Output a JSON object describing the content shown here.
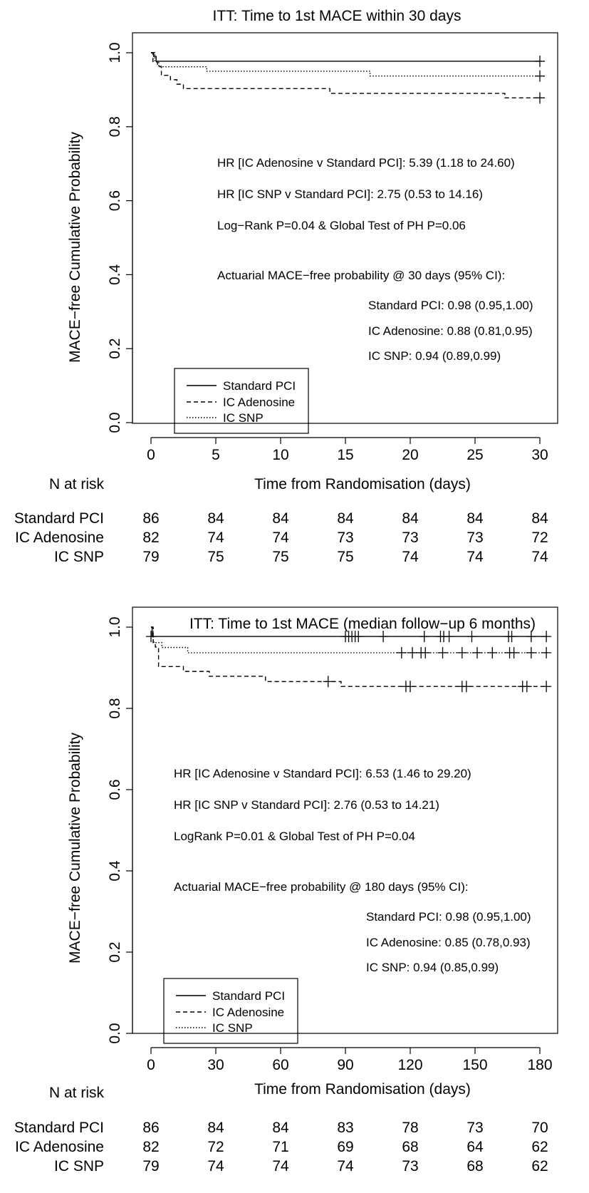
{
  "chart_data": [
    {
      "type": "line",
      "subtype": "kaplan-meier",
      "title": "ITT: Time to 1st MACE within 30 days",
      "xlabel": "Time from Randomisation (days)",
      "ylabel": "MACE−free Cumulative Probability",
      "xlim": [
        0,
        30
      ],
      "ylim": [
        0,
        1
      ],
      "x_ticks": [
        "0",
        "5",
        "10",
        "15",
        "20",
        "25",
        "30"
      ],
      "y_ticks": [
        "0.0",
        "0.2",
        "0.4",
        "0.6",
        "0.8",
        "1.0"
      ],
      "grid": false,
      "legend_position": "bottom-left",
      "series": [
        {
          "name": "Standard PCI",
          "line_style": "solid",
          "steps": [
            [
              0,
              1.0
            ],
            [
              0.2,
              0.99
            ],
            [
              0.4,
              0.977
            ],
            [
              30,
              0.977
            ]
          ],
          "censored": [
            [
              30,
              0.977
            ]
          ]
        },
        {
          "name": "IC Adenosine",
          "line_style": "dashed",
          "steps": [
            [
              0,
              1.0
            ],
            [
              0.15,
              0.976
            ],
            [
              0.5,
              0.963
            ],
            [
              0.8,
              0.939
            ],
            [
              1.5,
              0.927
            ],
            [
              2,
              0.915
            ],
            [
              2.5,
              0.903
            ],
            [
              13.8,
              0.89
            ],
            [
              27.3,
              0.878
            ],
            [
              30,
              0.878
            ]
          ],
          "censored": [
            [
              30,
              0.878
            ]
          ]
        },
        {
          "name": "IC SNP",
          "line_style": "dotted",
          "steps": [
            [
              0,
              1.0
            ],
            [
              0.3,
              0.975
            ],
            [
              0.6,
              0.962
            ],
            [
              4.3,
              0.95
            ],
            [
              16.9,
              0.937
            ],
            [
              30,
              0.937
            ]
          ],
          "censored": [
            [
              30,
              0.937
            ]
          ]
        }
      ],
      "annotations": [
        "HR [IC Adenosine v Standard PCI]: 5.39 (1.18 to 24.60)",
        "HR [IC SNP v Standard PCI]: 2.75 (0.53 to 14.16)",
        "Log−Rank P=0.04 & Global Test of PH P=0.06",
        "Actuarial MACE−free probability @ 30 days (95% CI):",
        "Standard PCI: 0.98 (0.95,1.00)",
        "IC Adenosine: 0.88 (0.81,0.95)",
        "IC SNP: 0.94 (0.89,0.99)"
      ],
      "risk_table": {
        "header": "N at risk",
        "times": [
          0,
          5,
          10,
          15,
          20,
          25,
          30
        ],
        "rows": [
          {
            "label": "Standard PCI",
            "values": [
              "86",
              "84",
              "84",
              "84",
              "84",
              "84",
              "84"
            ]
          },
          {
            "label": "IC Adenosine",
            "values": [
              "82",
              "74",
              "74",
              "73",
              "73",
              "73",
              "72"
            ]
          },
          {
            "label": "IC SNP",
            "values": [
              "79",
              "75",
              "75",
              "75",
              "74",
              "74",
              "74"
            ]
          }
        ]
      }
    },
    {
      "type": "line",
      "subtype": "kaplan-meier",
      "title": "ITT: Time to 1st MACE (median follow−up 6 months)",
      "xlabel": "Time from Randomisation (days)",
      "ylabel": "MACE−free Cumulative Probability",
      "xlim": [
        0,
        180
      ],
      "ylim": [
        0,
        1
      ],
      "x_ticks": [
        "0",
        "30",
        "60",
        "90",
        "120",
        "150",
        "180"
      ],
      "y_ticks": [
        "0.0",
        "0.2",
        "0.4",
        "0.6",
        "0.8",
        "1.0"
      ],
      "grid": false,
      "legend_position": "bottom-left",
      "series": [
        {
          "name": "Standard PCI",
          "line_style": "solid",
          "steps": [
            [
              0,
              1.0
            ],
            [
              0.5,
              0.977
            ],
            [
              183,
              0.977
            ]
          ],
          "censored": [
            [
              0,
              0.977
            ],
            [
              90,
              0.977
            ],
            [
              91.5,
              0.977
            ],
            [
              93,
              0.977
            ],
            [
              94.5,
              0.977
            ],
            [
              96,
              0.977
            ],
            [
              107.5,
              0.977
            ],
            [
              126.5,
              0.977
            ],
            [
              134,
              0.977
            ],
            [
              135.5,
              0.977
            ],
            [
              138,
              0.977
            ],
            [
              148.5,
              0.977
            ],
            [
              165.5,
              0.977
            ],
            [
              167,
              0.977
            ],
            [
              176,
              0.977
            ],
            [
              183,
              0.977
            ]
          ]
        },
        {
          "name": "IC Adenosine",
          "line_style": "dashed",
          "steps": [
            [
              0,
              1.0
            ],
            [
              1,
              0.963
            ],
            [
              2,
              0.951
            ],
            [
              3.5,
              0.903
            ],
            [
              15,
              0.891
            ],
            [
              27,
              0.879
            ],
            [
              53,
              0.866
            ],
            [
              88,
              0.854
            ],
            [
              183,
              0.854
            ]
          ],
          "censored": [
            [
              82,
              0.866
            ],
            [
              118,
              0.854
            ],
            [
              120,
              0.854
            ],
            [
              144,
              0.854
            ],
            [
              146,
              0.854
            ],
            [
              172,
              0.854
            ],
            [
              174,
              0.854
            ],
            [
              183,
              0.854
            ]
          ]
        },
        {
          "name": "IC SNP",
          "line_style": "dotted",
          "steps": [
            [
              0,
              1.0
            ],
            [
              1,
              0.962
            ],
            [
              5,
              0.95
            ],
            [
              17,
              0.937
            ],
            [
              183,
              0.937
            ]
          ],
          "censored": [
            [
              116,
              0.937
            ],
            [
              121,
              0.937
            ],
            [
              125,
              0.937
            ],
            [
              127,
              0.937
            ],
            [
              135,
              0.937
            ],
            [
              144,
              0.937
            ],
            [
              151,
              0.937
            ],
            [
              158,
              0.937
            ],
            [
              166,
              0.937
            ],
            [
              168,
              0.937
            ],
            [
              176,
              0.937
            ],
            [
              183,
              0.937
            ]
          ]
        }
      ],
      "annotations": [
        "HR [IC Adenosine v Standard PCI]: 6.53 (1.46 to 29.20)",
        "HR [IC SNP v Standard PCI]: 2.76 (0.53 to 14.21)",
        "LogRank P=0.01 & Global Test of PH P=0.04",
        "Actuarial MACE−free probability @ 180 days (95% CI):",
        "Standard PCI: 0.98 (0.95,1.00)",
        "IC Adenosine: 0.85 (0.78,0.93)",
        "IC SNP: 0.94 (0.85,0.99)"
      ],
      "risk_table": {
        "header": "N at risk",
        "times": [
          0,
          30,
          60,
          90,
          120,
          150,
          180
        ],
        "rows": [
          {
            "label": "Standard PCI",
            "values": [
              "86",
              "84",
              "84",
              "83",
              "78",
              "73",
              "70"
            ]
          },
          {
            "label": "IC Adenosine",
            "values": [
              "82",
              "72",
              "71",
              "69",
              "68",
              "64",
              "62"
            ]
          },
          {
            "label": "IC SNP",
            "values": [
              "79",
              "74",
              "74",
              "74",
              "73",
              "68",
              "62"
            ]
          }
        ]
      }
    }
  ]
}
